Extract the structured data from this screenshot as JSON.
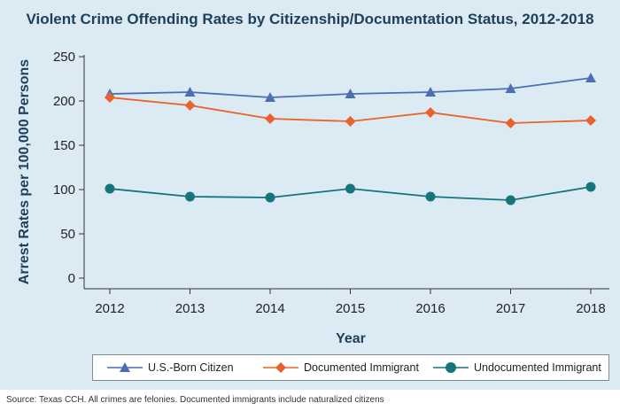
{
  "title": "Violent Crime Offending Rates by Citizenship/Documentation Status, 2012-2018",
  "source": "Source: Texas CCH. All crimes are felonies. Documented immigrants include naturalized citizens",
  "colors": {
    "background": "#dcebf3",
    "title": "#1e3f5c",
    "axis": "#333333"
  },
  "chart_data": {
    "type": "line",
    "xlabel": "Year",
    "ylabel": "Arrest Rates per 100,000 Persons",
    "x": [
      2012,
      2013,
      2014,
      2015,
      2016,
      2017,
      2018
    ],
    "xticks": [
      "2012",
      "2013",
      "2014",
      "2015",
      "2016",
      "2017",
      "2018"
    ],
    "ylim": [
      0,
      250
    ],
    "yticks": [
      "0",
      "50",
      "100",
      "150",
      "200",
      "250"
    ],
    "grid": false,
    "legend_position": "bottom",
    "series": [
      {
        "name": "U.S.-Born Citizen",
        "marker": "triangle",
        "color": "#4a6fb5",
        "values": [
          208,
          210,
          204,
          208,
          210,
          214,
          226
        ]
      },
      {
        "name": "Documented Immigrant",
        "marker": "diamond",
        "color": "#e9622c",
        "values": [
          204,
          195,
          180,
          177,
          187,
          175,
          178
        ]
      },
      {
        "name": "Undocumented Immigrant",
        "marker": "circle",
        "color": "#16747c",
        "values": [
          101,
          92,
          91,
          101,
          92,
          88,
          103
        ]
      }
    ]
  }
}
